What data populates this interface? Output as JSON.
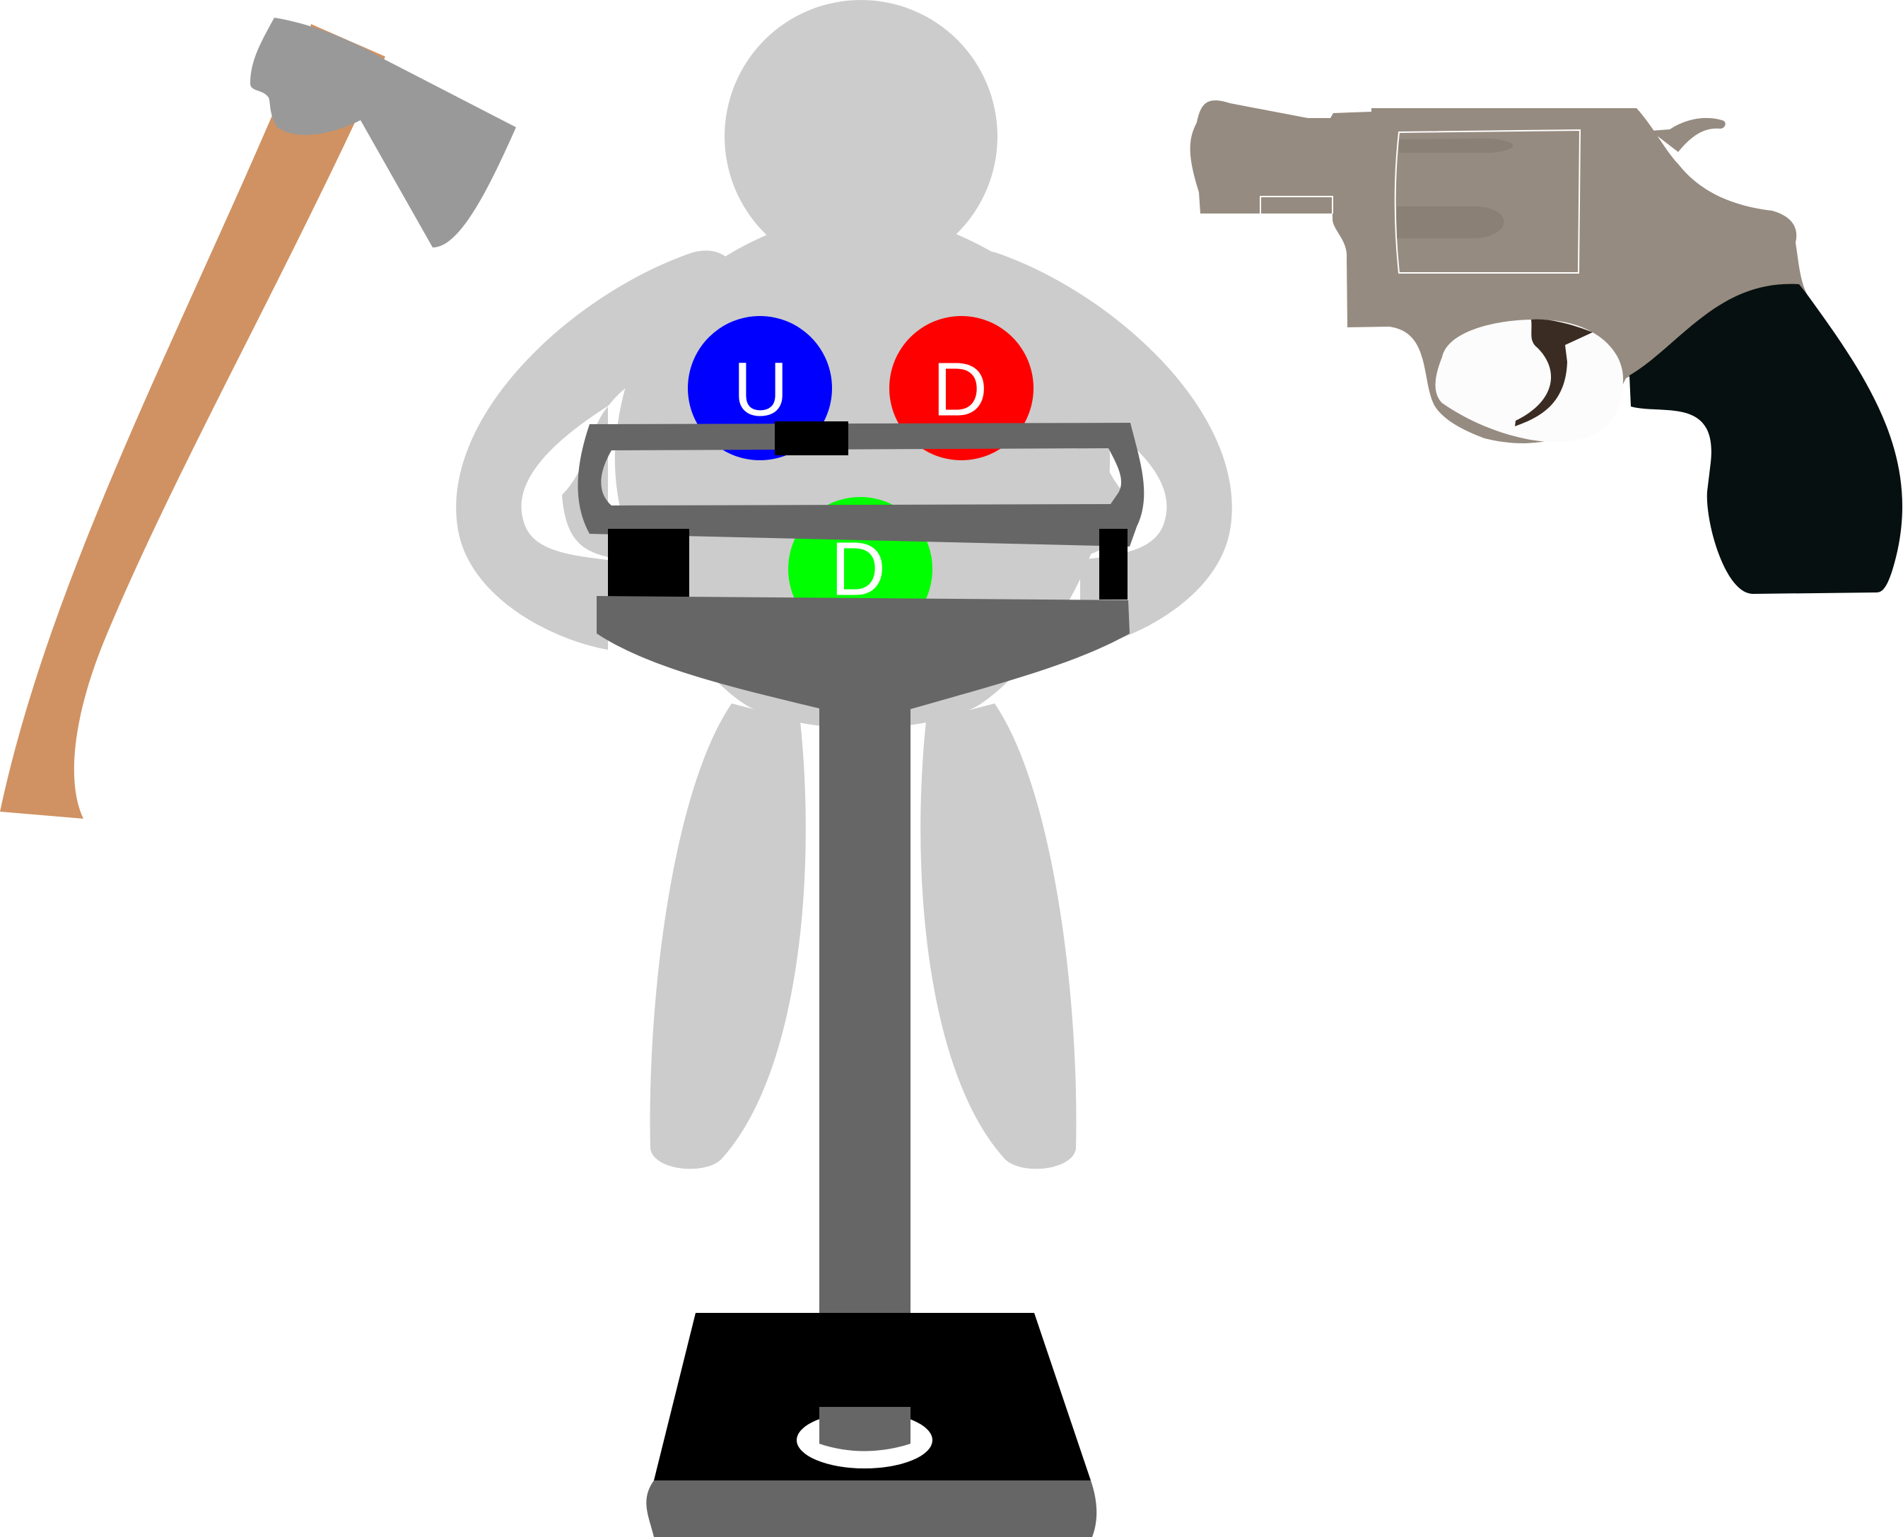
{
  "quarks": [
    {
      "label": "U",
      "color": "#0000ff"
    },
    {
      "label": "D",
      "color": "#ff0000"
    },
    {
      "label": "D",
      "color": "#00ff00"
    }
  ],
  "colors": {
    "figure": "#cccccc",
    "machine": "#666666",
    "machine_accent": "#000000",
    "axe_head": "#999999",
    "axe_handle": "#d09263",
    "revolver_body": "#968b80",
    "revolver_grip": "#061010",
    "revolver_trigger": "#3a2c22"
  },
  "icons": [
    "axe-icon",
    "revolver-icon",
    "grey-figure",
    "clamp-press-machine"
  ]
}
